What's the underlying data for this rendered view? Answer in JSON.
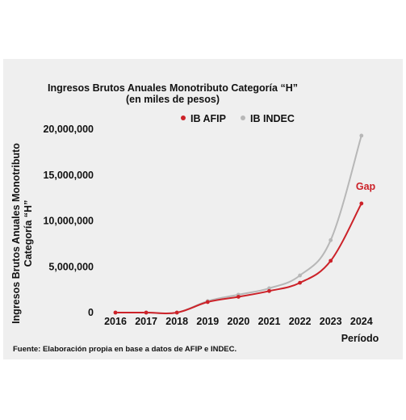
{
  "chart_data": {
    "type": "line",
    "title": "Ingresos Brutos Anuales Monotributo Categoría “H”",
    "subtitle": "(en miles de pesos)",
    "ylabel": [
      "Ingresos Brutos Anuales Monotributo",
      "Categoría “H”"
    ],
    "xlabel": "Período",
    "x": [
      2016,
      2017,
      2018,
      2019,
      2020,
      2021,
      2022,
      2023,
      2024
    ],
    "x_tick_labels": [
      "2016",
      "2017",
      "2018",
      "2019",
      "2020",
      "2021",
      "2022",
      "2023",
      "2024"
    ],
    "y_ticks": [
      0,
      5000000,
      10000000,
      15000000,
      20000000
    ],
    "y_tick_labels": [
      "0",
      "5,000,000",
      "10,000,000",
      "15,000,000",
      "20,000,000"
    ],
    "ylim": [
      0,
      20000000
    ],
    "grid": false,
    "legend_position": "top",
    "series": [
      {
        "name": "IB AFIP",
        "color": "#cc2229",
        "values": [
          0,
          0,
          0,
          1150000,
          1720000,
          2350000,
          3250000,
          5650000,
          11900000
        ]
      },
      {
        "name": "IB INDEC",
        "color": "#b7b7b7",
        "values": [
          0,
          0,
          0,
          1250000,
          1950000,
          2650000,
          4050000,
          7900000,
          19300000
        ]
      }
    ],
    "annotation": {
      "text": "Gap",
      "color": "#cc2229"
    },
    "source": "Fuente: Elaboración propia en base a datos de AFIP e INDEC."
  }
}
